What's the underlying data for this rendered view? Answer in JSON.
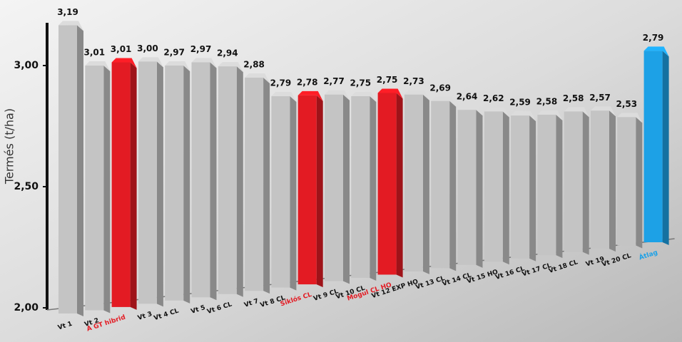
{
  "chart_data": {
    "type": "bar",
    "y_label": "Termés (t/ha)",
    "categories": [
      "Vt 1",
      "Vt 2",
      "A GT hibrid",
      "Vt 3",
      "Vt 4 CL",
      "Vt 5",
      "Vt 6 CL",
      "Vt 7",
      "Vt 8 CL",
      "Siklós CL",
      "Vt 9 CL",
      "Vt 10 CL",
      "Mogul CL HO",
      "Vt 12 EXP HO",
      "Vt 13 CL",
      "Vt 14 CL",
      "Vt 15 HO",
      "Vt 16 CL",
      "Vt 17 CL",
      "Vt 18 CL",
      "Vt 19",
      "Vt 20 CL",
      "Átlag"
    ],
    "values": [
      3.19,
      3.01,
      3.01,
      3.0,
      2.97,
      2.97,
      2.94,
      2.88,
      2.79,
      2.78,
      2.77,
      2.75,
      2.75,
      2.73,
      2.69,
      2.64,
      2.62,
      2.59,
      2.58,
      2.58,
      2.57,
      2.53,
      2.79
    ],
    "value_labels": [
      "3,19",
      "3,01",
      "3,01",
      "3,00",
      "2,97",
      "2,97",
      "2,94",
      "2,88",
      "2,79",
      "2,78",
      "2,77",
      "2,75",
      "2,75",
      "2,73",
      "2,69",
      "2,64",
      "2,62",
      "2,59",
      "2,58",
      "2,58",
      "2,57",
      "2,53",
      "2,79"
    ],
    "colors": [
      "#c4c4c4",
      "#c4c4c4",
      "#e31b23",
      "#c4c4c4",
      "#c4c4c4",
      "#c4c4c4",
      "#c4c4c4",
      "#c4c4c4",
      "#c4c4c4",
      "#e31b23",
      "#c4c4c4",
      "#c4c4c4",
      "#e31b23",
      "#c4c4c4",
      "#c4c4c4",
      "#c4c4c4",
      "#c4c4c4",
      "#c4c4c4",
      "#c4c4c4",
      "#c4c4c4",
      "#c4c4c4",
      "#c4c4c4",
      "#1da1e6"
    ],
    "label_colors": [
      "#111111",
      "#111111",
      "#e31b23",
      "#111111",
      "#111111",
      "#111111",
      "#111111",
      "#111111",
      "#111111",
      "#e31b23",
      "#111111",
      "#111111",
      "#e31b23",
      "#111111",
      "#111111",
      "#111111",
      "#111111",
      "#111111",
      "#111111",
      "#111111",
      "#111111",
      "#111111",
      "#1da1e6"
    ],
    "ylim": [
      2.0,
      3.2
    ],
    "yticks": [
      {
        "value": 2.0,
        "label": "2,00"
      },
      {
        "value": 2.5,
        "label": "2,50"
      },
      {
        "value": 3.0,
        "label": "3,00"
      }
    ]
  }
}
